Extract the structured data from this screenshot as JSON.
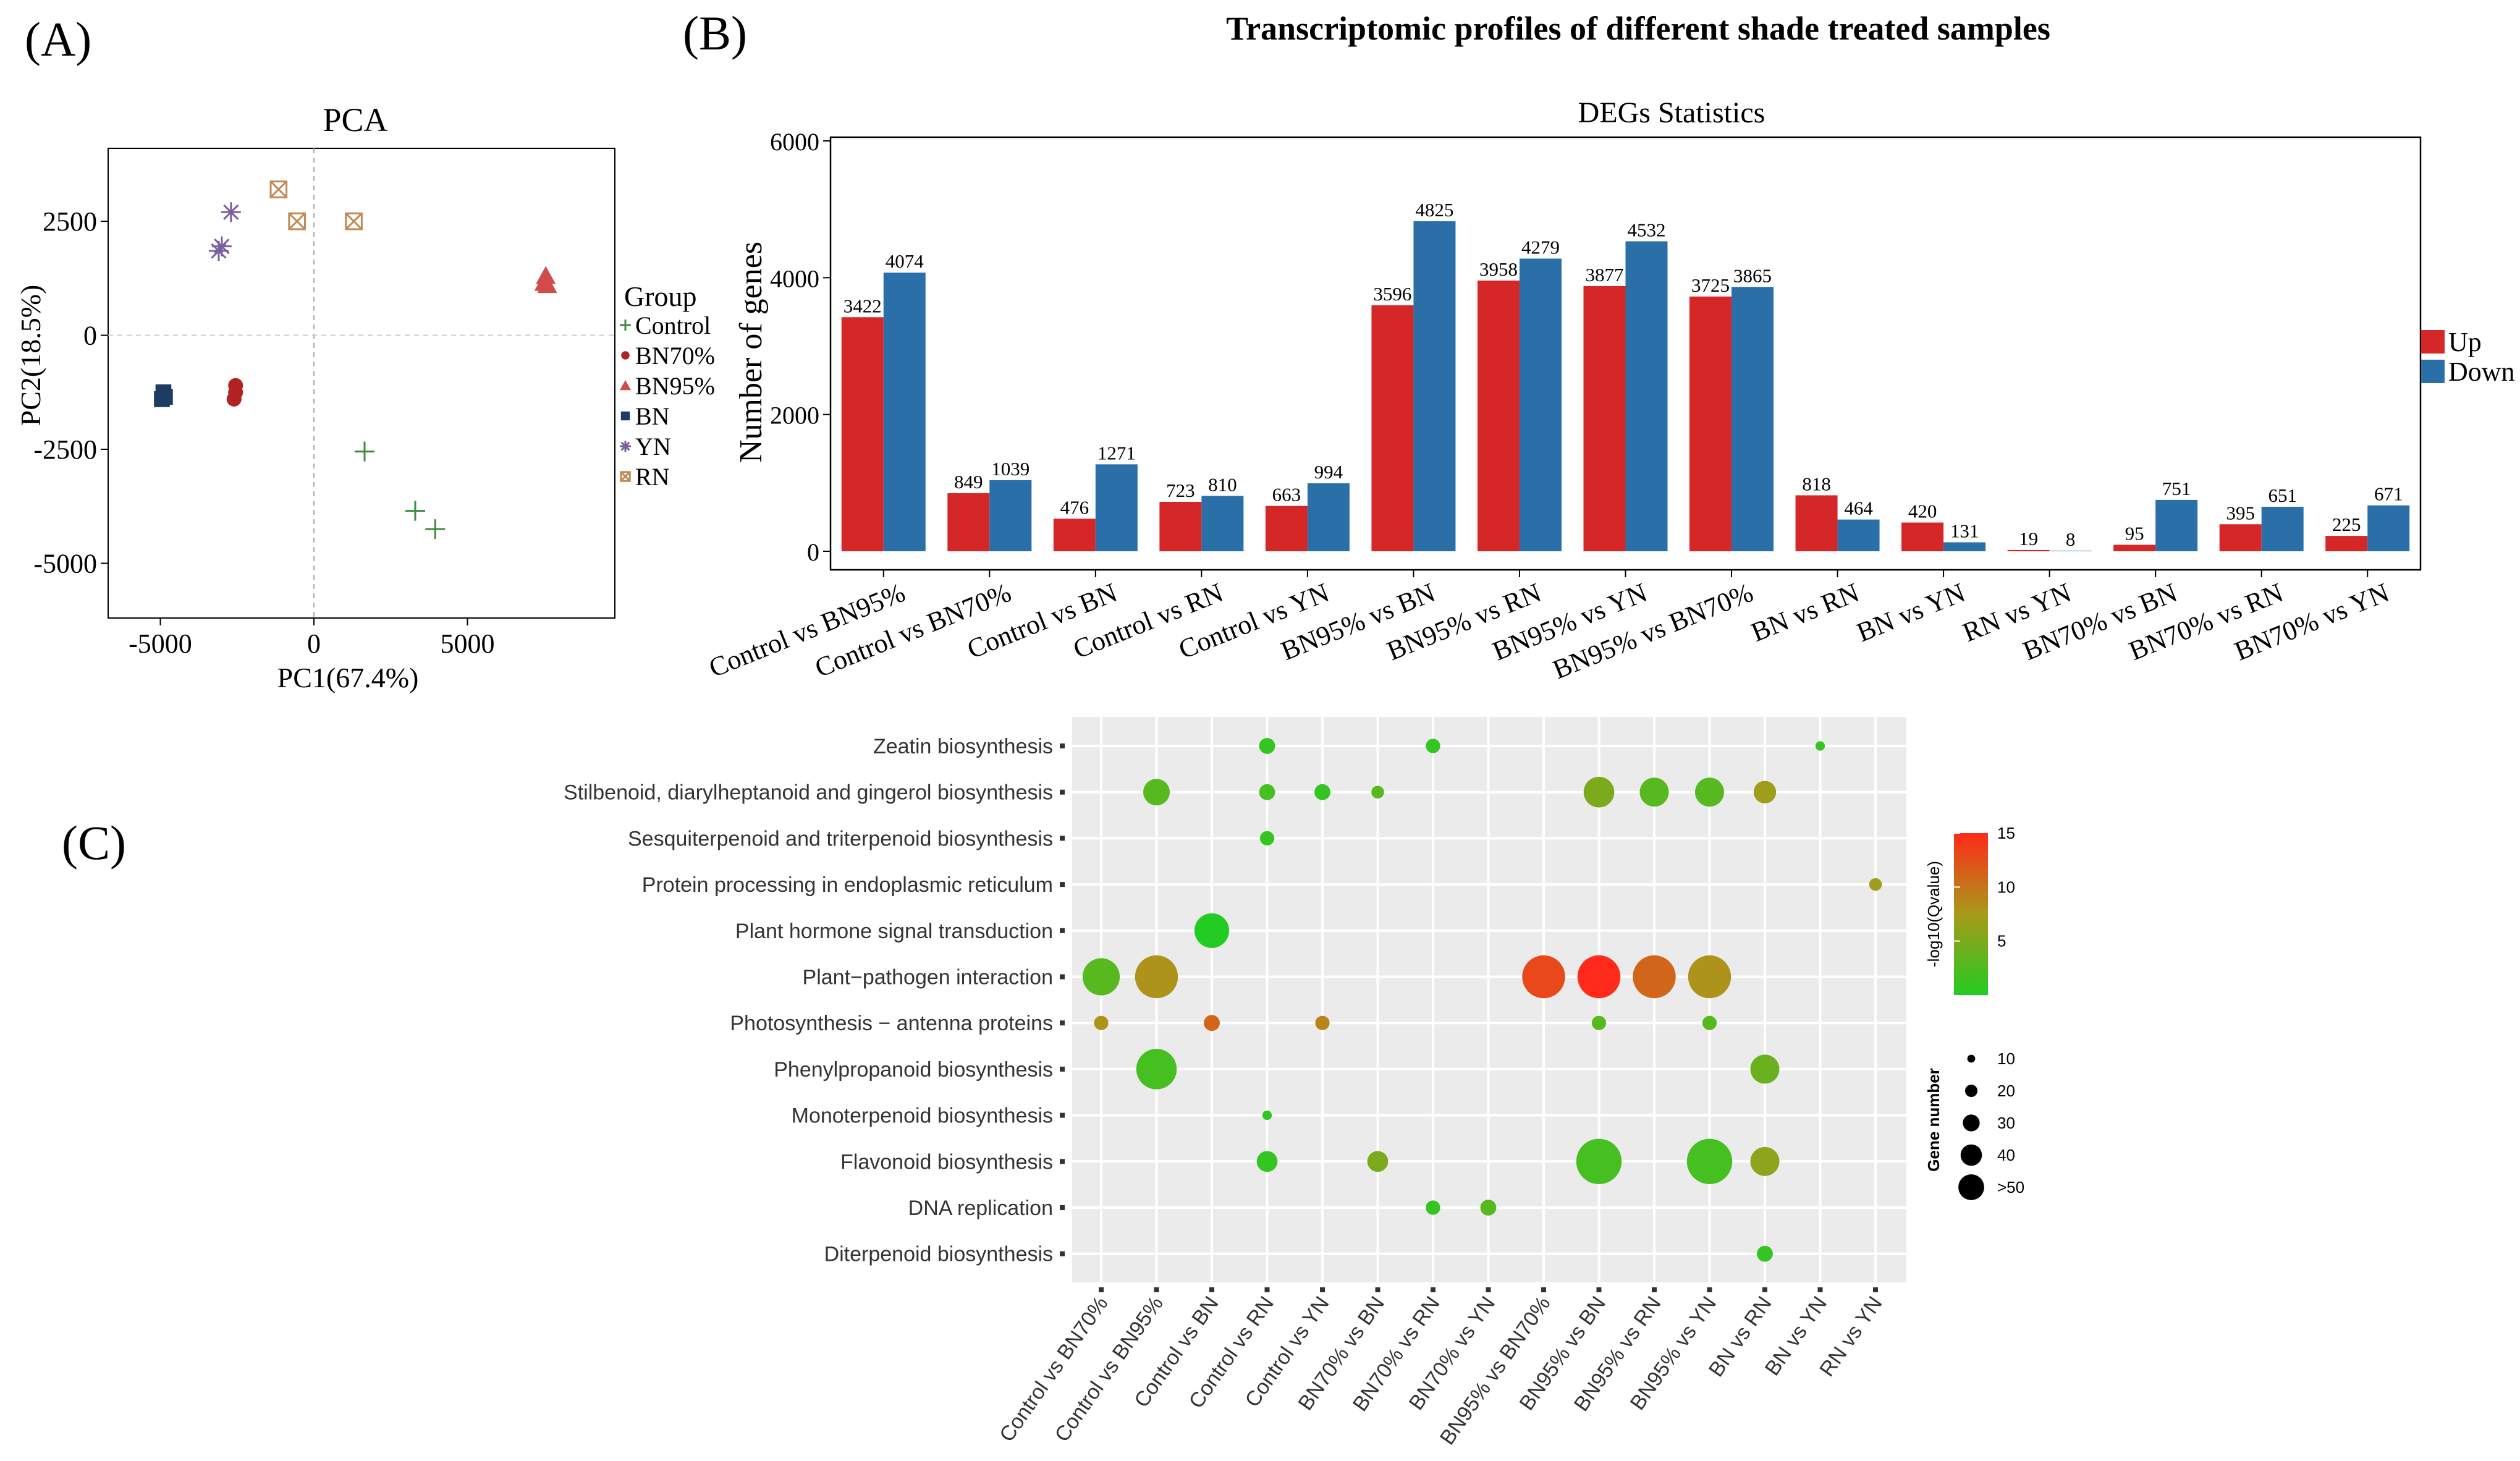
{
  "figure_title": "Transcriptomic profiles of different shade treated samples",
  "panel_labels": {
    "a": "(A)",
    "b": "(B)",
    "c": "(C)"
  },
  "colors": {
    "up": "#d62728",
    "down": "#2b6fa8",
    "Control": "#3c8c3c",
    "BN70%": "#b22222",
    "BN95%": "#d24b4b",
    "BN": "#1f3b63",
    "YN": "#7a5fa0",
    "RN": "#c08a55",
    "gradient_low": "#22cc22",
    "gradient_mid": "#a89a1a",
    "gradient_high": "#ff2a1a",
    "dot_panel_bg": "#ebebeb"
  },
  "chart_data": [
    {
      "type": "scatter",
      "title": "PCA",
      "xlabel": "PC1(67.4%)",
      "ylabel": "PC2(18.5%)",
      "xlim": [
        -6700,
        9800
      ],
      "ylim": [
        -6200,
        4100
      ],
      "xticks": [
        -5000,
        0,
        5000
      ],
      "yticks": [
        -5000,
        -2500,
        0,
        2500
      ],
      "xtick_labels": [
        "-5000",
        "0",
        "5000"
      ],
      "ytick_labels": [
        "-5000",
        "-2500",
        "0",
        "2500"
      ],
      "legend_title": "Group",
      "legend_position": "right",
      "series": [
        {
          "name": "Control",
          "marker": "plus",
          "points": [
            [
              1650,
              -2550
            ],
            [
              3300,
              -3850
            ],
            [
              3950,
              -4250
            ]
          ]
        },
        {
          "name": "BN70%",
          "marker": "circle",
          "points": [
            [
              -2550,
              -1100
            ],
            [
              -2550,
              -1250
            ],
            [
              -2600,
              -1400
            ]
          ]
        },
        {
          "name": "BN95%",
          "marker": "triangle",
          "points": [
            [
              7550,
              1300
            ],
            [
              7500,
              1150
            ],
            [
              7600,
              1100
            ]
          ]
        },
        {
          "name": "BN",
          "marker": "square",
          "points": [
            [
              -4900,
              -1250
            ],
            [
              -4850,
              -1350
            ],
            [
              -4950,
              -1400
            ]
          ]
        },
        {
          "name": "YN",
          "marker": "star",
          "points": [
            [
              -2700,
              2700
            ],
            [
              -3000,
              1950
            ],
            [
              -3100,
              1850
            ]
          ]
        },
        {
          "name": "RN",
          "marker": "boxx",
          "points": [
            [
              -1150,
              3200
            ],
            [
              -550,
              2500
            ],
            [
              1300,
              2500
            ]
          ]
        }
      ]
    },
    {
      "type": "bar",
      "title": "DEGs Statistics",
      "xlabel": "",
      "ylabel": "Number of genes",
      "ylim": [
        0,
        6000
      ],
      "yticks": [
        0,
        2000,
        4000,
        6000
      ],
      "ytick_labels": [
        "0",
        "2000",
        "4000",
        "6000"
      ],
      "legend_position": "right",
      "categories": [
        "Control vs BN95%",
        "Control vs BN70%",
        "Control vs BN",
        "Control vs RN",
        "Control vs YN",
        "BN95% vs BN",
        "BN95% vs RN",
        "BN95% vs YN",
        "BN95% vs BN70%",
        "BN vs RN",
        "BN vs YN",
        "RN vs YN",
        "BN70% vs BN",
        "BN70% vs RN",
        "BN70% vs YN"
      ],
      "series": [
        {
          "name": "Up",
          "values": [
            3422,
            849,
            476,
            723,
            663,
            3596,
            3958,
            3877,
            3725,
            818,
            420,
            19,
            95,
            395,
            225
          ]
        },
        {
          "name": "Down",
          "values": [
            4074,
            1039,
            1271,
            810,
            994,
            4825,
            4279,
            4532,
            3865,
            464,
            131,
            8,
            751,
            651,
            671
          ]
        }
      ]
    },
    {
      "type": "scatter",
      "subtype": "bubble",
      "x_categories": [
        "Control vs BN70%",
        "Control  vs BN95%",
        "Control vs BN",
        "Control vs RN",
        "Control vs YN",
        "BN70% vs BN",
        "BN70% vs RN",
        "BN70% vs YN",
        "BN95% vs BN70%",
        "BN95% vs BN",
        "BN95% vs RN",
        "BN95% vs YN",
        "BN vs RN",
        "BN vs YN",
        "RN vs YN"
      ],
      "y_categories": [
        "Zeatin biosynthesis",
        "Stilbenoid, diarylheptanoid and gingerol biosynthesis",
        "Sesquiterpenoid and triterpenoid biosynthesis",
        "Protein processing in endoplasmic reticulum",
        "Plant hormone signal transduction",
        "Plant−pathogen interaction",
        "Photosynthesis − antenna proteins",
        "Phenylpropanoid biosynthesis",
        "Monoterpenoid biosynthesis",
        "Flavonoid biosynthesis",
        "DNA replication",
        "Diterpenoid biosynthesis"
      ],
      "color_legend": {
        "title": "-log10(Qvalue)",
        "range": [
          0,
          15
        ],
        "ticks": [
          5,
          10,
          15
        ],
        "tick_labels": [
          "5",
          "10",
          "15"
        ]
      },
      "size_legend": {
        "title": "Gene number",
        "values": [
          10,
          20,
          30,
          40,
          50
        ],
        "labels": [
          "10",
          "20",
          "30",
          "40",
          ">50"
        ]
      },
      "points": [
        {
          "x": 3,
          "y": 0,
          "size": 12,
          "q": 1
        },
        {
          "x": 6,
          "y": 0,
          "size": 10,
          "q": 1
        },
        {
          "x": 13,
          "y": 0,
          "size": 4,
          "q": 1
        },
        {
          "x": 1,
          "y": 1,
          "size": 25,
          "q": 3
        },
        {
          "x": 3,
          "y": 1,
          "size": 12,
          "q": 2
        },
        {
          "x": 4,
          "y": 1,
          "size": 12,
          "q": 1
        },
        {
          "x": 5,
          "y": 1,
          "size": 8,
          "q": 3
        },
        {
          "x": 9,
          "y": 1,
          "size": 30,
          "q": 5
        },
        {
          "x": 10,
          "y": 1,
          "size": 28,
          "q": 3
        },
        {
          "x": 11,
          "y": 1,
          "size": 28,
          "q": 3
        },
        {
          "x": 12,
          "y": 1,
          "size": 20,
          "q": 7
        },
        {
          "x": 3,
          "y": 2,
          "size": 10,
          "q": 1
        },
        {
          "x": 14,
          "y": 3,
          "size": 8,
          "q": 7
        },
        {
          "x": 2,
          "y": 4,
          "size": 35,
          "q": 0
        },
        {
          "x": 0,
          "y": 5,
          "size": 38,
          "q": 3
        },
        {
          "x": 1,
          "y": 5,
          "size": 45,
          "q": 8
        },
        {
          "x": 8,
          "y": 5,
          "size": 45,
          "q": 13
        },
        {
          "x": 9,
          "y": 5,
          "size": 45,
          "q": 15
        },
        {
          "x": 10,
          "y": 5,
          "size": 45,
          "q": 11
        },
        {
          "x": 11,
          "y": 5,
          "size": 45,
          "q": 8
        },
        {
          "x": 0,
          "y": 6,
          "size": 10,
          "q": 8
        },
        {
          "x": 2,
          "y": 6,
          "size": 12,
          "q": 11
        },
        {
          "x": 4,
          "y": 6,
          "size": 10,
          "q": 9
        },
        {
          "x": 9,
          "y": 6,
          "size": 10,
          "q": 3
        },
        {
          "x": 11,
          "y": 6,
          "size": 10,
          "q": 3
        },
        {
          "x": 1,
          "y": 7,
          "size": 42,
          "q": 2
        },
        {
          "x": 12,
          "y": 7,
          "size": 28,
          "q": 4
        },
        {
          "x": 3,
          "y": 8,
          "size": 4,
          "q": 1
        },
        {
          "x": 3,
          "y": 9,
          "size": 18,
          "q": 1
        },
        {
          "x": 5,
          "y": 9,
          "size": 18,
          "q": 5
        },
        {
          "x": 9,
          "y": 9,
          "size": 48,
          "q": 2
        },
        {
          "x": 11,
          "y": 9,
          "size": 48,
          "q": 2
        },
        {
          "x": 12,
          "y": 9,
          "size": 28,
          "q": 6
        },
        {
          "x": 6,
          "y": 10,
          "size": 10,
          "q": 1
        },
        {
          "x": 7,
          "y": 10,
          "size": 12,
          "q": 3
        },
        {
          "x": 12,
          "y": 11,
          "size": 12,
          "q": 1
        }
      ]
    }
  ]
}
